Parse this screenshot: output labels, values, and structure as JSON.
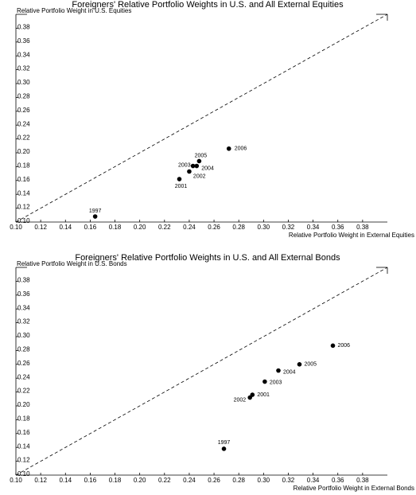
{
  "chart_data": [
    {
      "type": "scatter",
      "title": "Foreigners' Relative Portfolio Weights in U.S. and All External Equities",
      "x_label": "Relative Portfolio Weight in External Equities",
      "y_label": "Relative Portfolio Weight in U.S. Equities",
      "x": [
        0.164,
        0.232,
        0.24,
        0.243,
        0.246,
        0.248,
        0.272
      ],
      "values": [
        0.108,
        0.162,
        0.173,
        0.181,
        0.181,
        0.188,
        0.206
      ],
      "point_labels": [
        "1997",
        "2001",
        "2002",
        "2003",
        "2004",
        "2005",
        "2006"
      ],
      "color": "#000000",
      "xlim": [
        0.1,
        0.4
      ],
      "ylim": [
        0.1,
        0.4
      ],
      "xticks": [
        {
          "value": 0.1,
          "label": "0.10"
        },
        {
          "value": 0.12,
          "label": "0.12"
        },
        {
          "value": 0.14,
          "label": "0.14"
        },
        {
          "value": 0.16,
          "label": "0.16"
        },
        {
          "value": 0.18,
          "label": "0.18"
        },
        {
          "value": 0.2,
          "label": "0.20"
        },
        {
          "value": 0.22,
          "label": "0.22"
        },
        {
          "value": 0.24,
          "label": "0.24"
        },
        {
          "value": 0.26,
          "label": "0.26"
        },
        {
          "value": 0.28,
          "label": "0.28"
        },
        {
          "value": 0.3,
          "label": "0.30"
        },
        {
          "value": 0.32,
          "label": "0.32"
        },
        {
          "value": 0.34,
          "label": "0.34"
        },
        {
          "value": 0.36,
          "label": "0.36"
        },
        {
          "value": 0.38,
          "label": "0.38"
        }
      ],
      "yticks": [
        {
          "value": 0.1,
          "label": "0.10"
        },
        {
          "value": 0.12,
          "label": "0.12"
        },
        {
          "value": 0.14,
          "label": "0.14"
        },
        {
          "value": 0.16,
          "label": "0.16"
        },
        {
          "value": 0.18,
          "label": "0.18"
        },
        {
          "value": 0.2,
          "label": "0.20"
        },
        {
          "value": 0.22,
          "label": "0.22"
        },
        {
          "value": 0.24,
          "label": "0.24"
        },
        {
          "value": 0.26,
          "label": "0.26"
        },
        {
          "value": 0.28,
          "label": "0.28"
        },
        {
          "value": 0.3,
          "label": "0.30"
        },
        {
          "value": 0.32,
          "label": "0.32"
        },
        {
          "value": 0.34,
          "label": "0.34"
        },
        {
          "value": 0.36,
          "label": "0.36"
        },
        {
          "value": 0.38,
          "label": "0.38"
        }
      ]
    },
    {
      "type": "scatter",
      "title": "Foreigners' Relative Portfolio Weights in U.S. and All External Bonds",
      "x_label": "Relative Portfolio Weight in External Bonds",
      "y_label": "Relative Portfolio Weight in U.S. Bonds",
      "x": [
        0.268,
        0.291,
        0.289,
        0.301,
        0.312,
        0.329,
        0.356
      ],
      "values": [
        0.138,
        0.216,
        0.212,
        0.235,
        0.251,
        0.26,
        0.287
      ],
      "point_labels": [
        "1997",
        "2001",
        "2002",
        "2003",
        "2004",
        "2005",
        "2006"
      ],
      "color": "#000000",
      "xlim": [
        0.1,
        0.4
      ],
      "ylim": [
        0.1,
        0.4
      ],
      "xticks": [
        {
          "value": 0.1,
          "label": "0.10"
        },
        {
          "value": 0.12,
          "label": "0.12"
        },
        {
          "value": 0.14,
          "label": "0.14"
        },
        {
          "value": 0.16,
          "label": "0.16"
        },
        {
          "value": 0.18,
          "label": "0.18"
        },
        {
          "value": 0.2,
          "label": "0.20"
        },
        {
          "value": 0.22,
          "label": "0.22"
        },
        {
          "value": 0.24,
          "label": "0.24"
        },
        {
          "value": 0.26,
          "label": "0.26"
        },
        {
          "value": 0.28,
          "label": "0.28"
        },
        {
          "value": 0.3,
          "label": "0.30"
        },
        {
          "value": 0.32,
          "label": "0.32"
        },
        {
          "value": 0.34,
          "label": "0.34"
        },
        {
          "value": 0.36,
          "label": "0.36"
        },
        {
          "value": 0.38,
          "label": "0.38"
        }
      ],
      "yticks": [
        {
          "value": 0.1,
          "label": "0.10"
        },
        {
          "value": 0.12,
          "label": "0.12"
        },
        {
          "value": 0.14,
          "label": "0.14"
        },
        {
          "value": 0.16,
          "label": "0.16"
        },
        {
          "value": 0.18,
          "label": "0.18"
        },
        {
          "value": 0.2,
          "label": "0.20"
        },
        {
          "value": 0.22,
          "label": "0.22"
        },
        {
          "value": 0.24,
          "label": "0.24"
        },
        {
          "value": 0.26,
          "label": "0.26"
        },
        {
          "value": 0.28,
          "label": "0.28"
        },
        {
          "value": 0.3,
          "label": "0.30"
        },
        {
          "value": 0.32,
          "label": "0.32"
        },
        {
          "value": 0.34,
          "label": "0.34"
        },
        {
          "value": 0.36,
          "label": "0.36"
        },
        {
          "value": 0.38,
          "label": "0.38"
        }
      ]
    }
  ]
}
